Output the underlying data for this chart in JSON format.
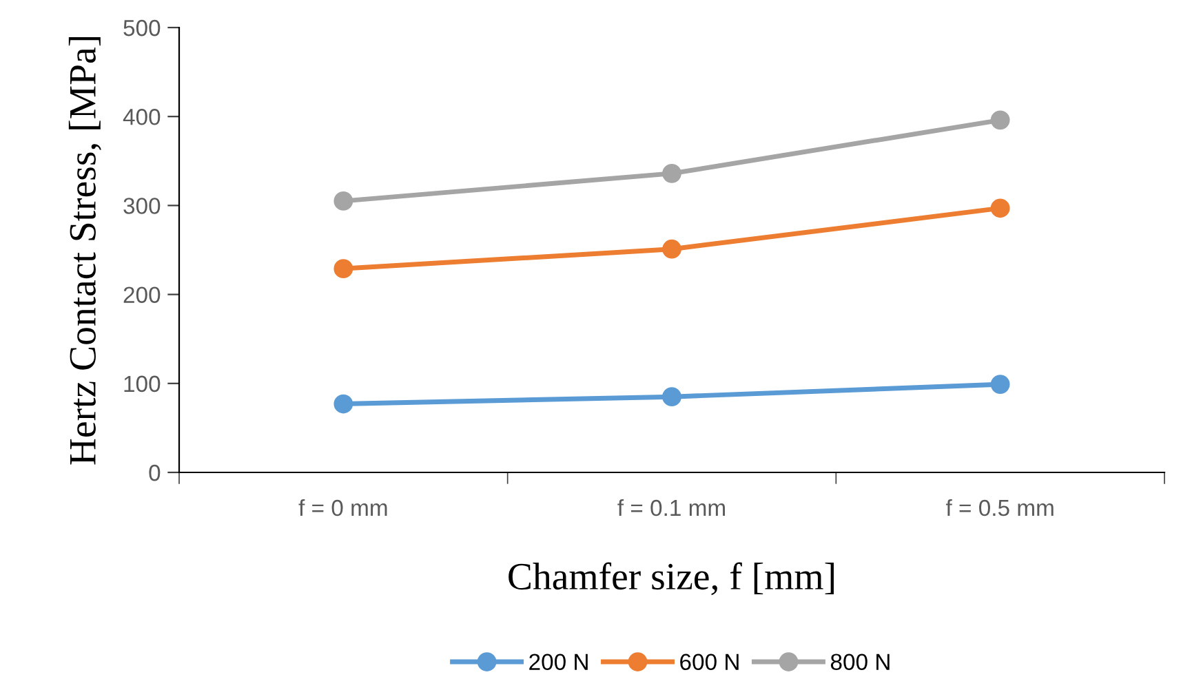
{
  "chart_data": {
    "type": "line",
    "xlabel": "Chamfer size, f [mm]",
    "ylabel": "Hertz Contact Stress, [MPa]",
    "categories": [
      "f = 0 mm",
      "f = 0.1 mm",
      "f = 0.5 mm"
    ],
    "series": [
      {
        "name": "200 N",
        "color": "#5b9bd5",
        "values": [
          77,
          85,
          99
        ]
      },
      {
        "name": "600 N",
        "color": "#ed7d31",
        "values": [
          229,
          251,
          297
        ]
      },
      {
        "name": "800 N",
        "color": "#a5a5a5",
        "values": [
          305,
          336,
          396
        ]
      }
    ],
    "ylim": [
      0,
      500
    ],
    "yticks": [
      0,
      100,
      200,
      300,
      400,
      500
    ],
    "grid": false,
    "legend": "bottom",
    "marker": "circle",
    "line_style": "solid"
  }
}
